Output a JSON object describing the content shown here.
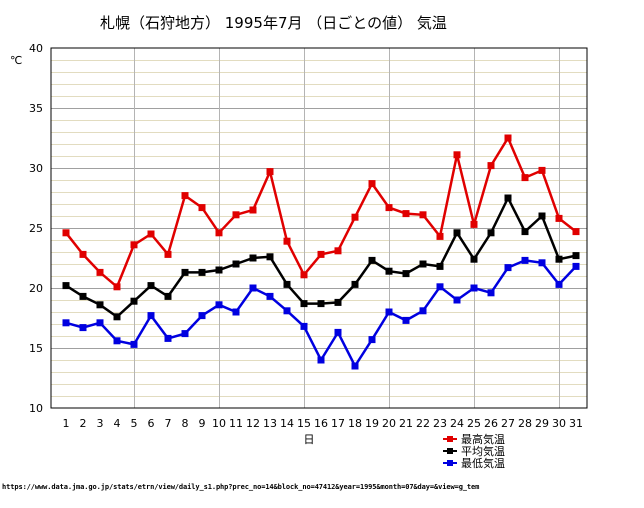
{
  "chart_data": {
    "type": "line",
    "title": "札幌（石狩地方） 1995年7月 （日ごとの値） 気温",
    "ylabel": "℃",
    "xlabel": "日",
    "ylim": [
      10,
      40
    ],
    "yticks": [
      10,
      15,
      20,
      25,
      30,
      35,
      40
    ],
    "grid": true,
    "legend_position": "bottom-right",
    "categories": [
      "1",
      "2",
      "3",
      "4",
      "5",
      "6",
      "7",
      "8",
      "9",
      "10",
      "11",
      "12",
      "13",
      "14",
      "15",
      "16",
      "17",
      "18",
      "19",
      "20",
      "21",
      "22",
      "23",
      "24",
      "25",
      "26",
      "27",
      "28",
      "29",
      "30",
      "31"
    ],
    "series": [
      {
        "name": "最高気温",
        "color": "#e00000",
        "values": [
          24.6,
          22.8,
          21.3,
          20.1,
          23.6,
          24.5,
          22.8,
          27.7,
          26.7,
          24.6,
          26.1,
          26.5,
          29.7,
          23.9,
          21.1,
          22.8,
          23.1,
          25.9,
          28.7,
          26.7,
          26.2,
          26.1,
          24.3,
          31.1,
          25.3,
          30.2,
          32.5,
          29.2,
          29.8,
          25.8,
          24.7
        ]
      },
      {
        "name": "平均気温",
        "color": "#000000",
        "values": [
          20.2,
          19.3,
          18.6,
          17.6,
          18.9,
          20.2,
          19.3,
          21.3,
          21.3,
          21.5,
          22.0,
          22.5,
          22.6,
          20.3,
          18.7,
          18.7,
          18.8,
          20.3,
          22.3,
          21.4,
          21.2,
          22.0,
          21.8,
          24.6,
          22.4,
          24.6,
          27.5,
          24.7,
          26.0,
          22.4,
          22.7
        ]
      },
      {
        "name": "最低気温",
        "color": "#0000e0",
        "values": [
          17.1,
          16.7,
          17.1,
          15.6,
          15.3,
          17.7,
          15.8,
          16.2,
          17.7,
          18.6,
          18.0,
          20.0,
          19.3,
          18.1,
          16.8,
          14.0,
          16.3,
          13.5,
          15.7,
          18.0,
          17.3,
          18.1,
          20.1,
          19.0,
          20.0,
          19.6,
          21.7,
          22.3,
          22.1,
          20.3,
          21.8
        ]
      }
    ]
  },
  "source_url": "https://www.data.jma.go.jp/stats/etrn/view/daily_s1.php?prec_no=14&block_no=47412&year=1995&month=07&day=&view=g_tem"
}
